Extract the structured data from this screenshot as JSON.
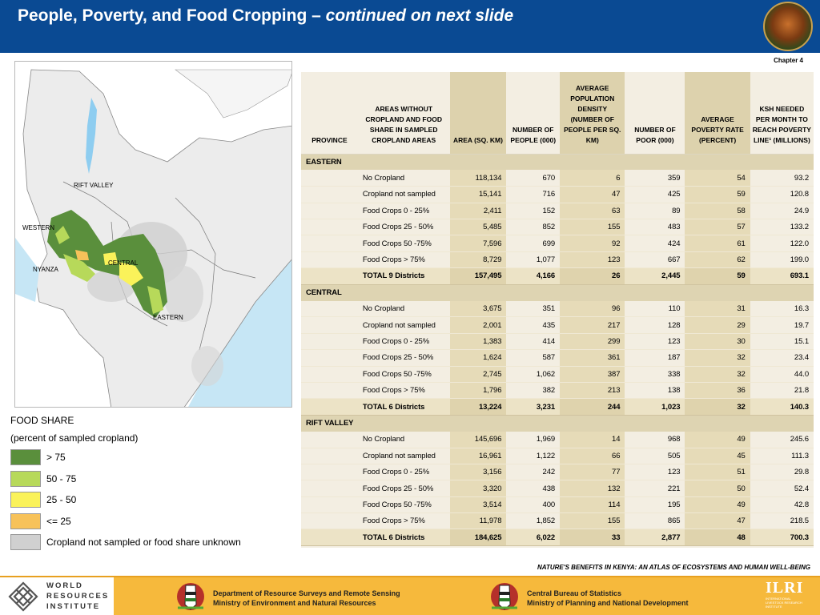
{
  "header": {
    "title_main": "People, Poverty, and Food Cropping – ",
    "title_italic": "continued on next slide",
    "chapter": "Chapter 4"
  },
  "map": {
    "labels": {
      "rift_valley": "RIFT VALLEY",
      "western": "WESTERN",
      "nyanza": "NYANZA",
      "central": "CENTRAL",
      "eastern": "EASTERN"
    }
  },
  "legend": {
    "title": "FOOD SHARE",
    "subtitle": "(percent of sampled cropland)",
    "items": [
      {
        "label": "> 75",
        "color": "#5a8f3c"
      },
      {
        "label": "50 - 75",
        "color": "#b7d95a"
      },
      {
        "label": "25 - 50",
        "color": "#faf25a"
      },
      {
        "label": "<= 25",
        "color": "#f7c25a"
      },
      {
        "label": "Cropland not sampled or food share unknown",
        "color": "#d0d0d0"
      }
    ]
  },
  "table": {
    "headers": [
      "PROVINCE",
      "AREAS WITHOUT CROPLAND AND FOOD SHARE IN SAMPLED CROPLAND AREAS",
      "AREA (SQ. KM)",
      "NUMBER OF PEOPLE (000)",
      "AVERAGE POPULATION DENSITY (NUMBER OF PEOPLE PER SQ. KM)",
      "NUMBER OF POOR (000)",
      "AVERAGE POVERTY RATE (PERCENT)",
      "KSH NEEDED PER MONTH TO REACH POVERTY LINE¹ (MILLIONS)"
    ],
    "provinces": [
      {
        "name": "EASTERN",
        "rows": [
          [
            "No Cropland",
            "118,134",
            "670",
            "6",
            "359",
            "54",
            "93.2"
          ],
          [
            "Cropland not sampled",
            "15,141",
            "716",
            "47",
            "425",
            "59",
            "120.8"
          ],
          [
            "Food Crops 0 - 25%",
            "2,411",
            "152",
            "63",
            "89",
            "58",
            "24.9"
          ],
          [
            "Food Crops 25 - 50%",
            "5,485",
            "852",
            "155",
            "483",
            "57",
            "133.2"
          ],
          [
            "Food Crops 50 -75%",
            "7,596",
            "699",
            "92",
            "424",
            "61",
            "122.0"
          ],
          [
            "Food Crops > 75%",
            "8,729",
            "1,077",
            "123",
            "667",
            "62",
            "199.0"
          ]
        ],
        "total": [
          "TOTAL 9 Districts",
          "157,495",
          "4,166",
          "26",
          "2,445",
          "59",
          "693.1"
        ]
      },
      {
        "name": "CENTRAL",
        "rows": [
          [
            "No Cropland",
            "3,675",
            "351",
            "96",
            "110",
            "31",
            "16.3"
          ],
          [
            "Cropland not sampled",
            "2,001",
            "435",
            "217",
            "128",
            "29",
            "19.7"
          ],
          [
            "Food Crops 0 - 25%",
            "1,383",
            "414",
            "299",
            "123",
            "30",
            "15.1"
          ],
          [
            "Food Crops 25 - 50%",
            "1,624",
            "587",
            "361",
            "187",
            "32",
            "23.4"
          ],
          [
            "Food Crops 50 -75%",
            "2,745",
            "1,062",
            "387",
            "338",
            "32",
            "44.0"
          ],
          [
            "Food Crops > 75%",
            "1,796",
            "382",
            "213",
            "138",
            "36",
            "21.8"
          ]
        ],
        "total": [
          "TOTAL 6 Districts",
          "13,224",
          "3,231",
          "244",
          "1,023",
          "32",
          "140.3"
        ]
      },
      {
        "name": "RIFT VALLEY",
        "rows": [
          [
            "No Cropland",
            "145,696",
            "1,969",
            "14",
            "968",
            "49",
            "245.6"
          ],
          [
            "Cropland not sampled",
            "16,961",
            "1,122",
            "66",
            "505",
            "45",
            "111.3"
          ],
          [
            "Food Crops 0 - 25%",
            "3,156",
            "242",
            "77",
            "123",
            "51",
            "29.8"
          ],
          [
            "Food Crops 25 - 50%",
            "3,320",
            "438",
            "132",
            "221",
            "50",
            "52.4"
          ],
          [
            "Food Crops 50 -75%",
            "3,514",
            "400",
            "114",
            "195",
            "49",
            "42.8"
          ],
          [
            "Food Crops > 75%",
            "11,978",
            "1,852",
            "155",
            "865",
            "47",
            "218.5"
          ]
        ],
        "total": [
          "TOTAL 6 Districts",
          "184,625",
          "6,022",
          "33",
          "2,877",
          "48",
          "700.3"
        ]
      }
    ]
  },
  "source": "NATURE'S BENEFITS IN KENYA: AN ATLAS OF ECOSYSTEMS AND HUMAN WELL-BEING",
  "footer": {
    "wri": [
      "WORLD",
      "RESOURCES",
      "INSTITUTE"
    ],
    "dept_line1": "Department of Resource Surveys and Remote Sensing",
    "dept_line2": "Ministry of Environment and Natural Resources",
    "cbs_line1": "Central Bureau of Statistics",
    "cbs_line2": "Ministry of Planning and National Development",
    "ilri": "ILRI",
    "ilri_sub": [
      "INTERNATIONAL",
      "LIVESTOCK RESEARCH",
      "INSTITUTE"
    ]
  }
}
